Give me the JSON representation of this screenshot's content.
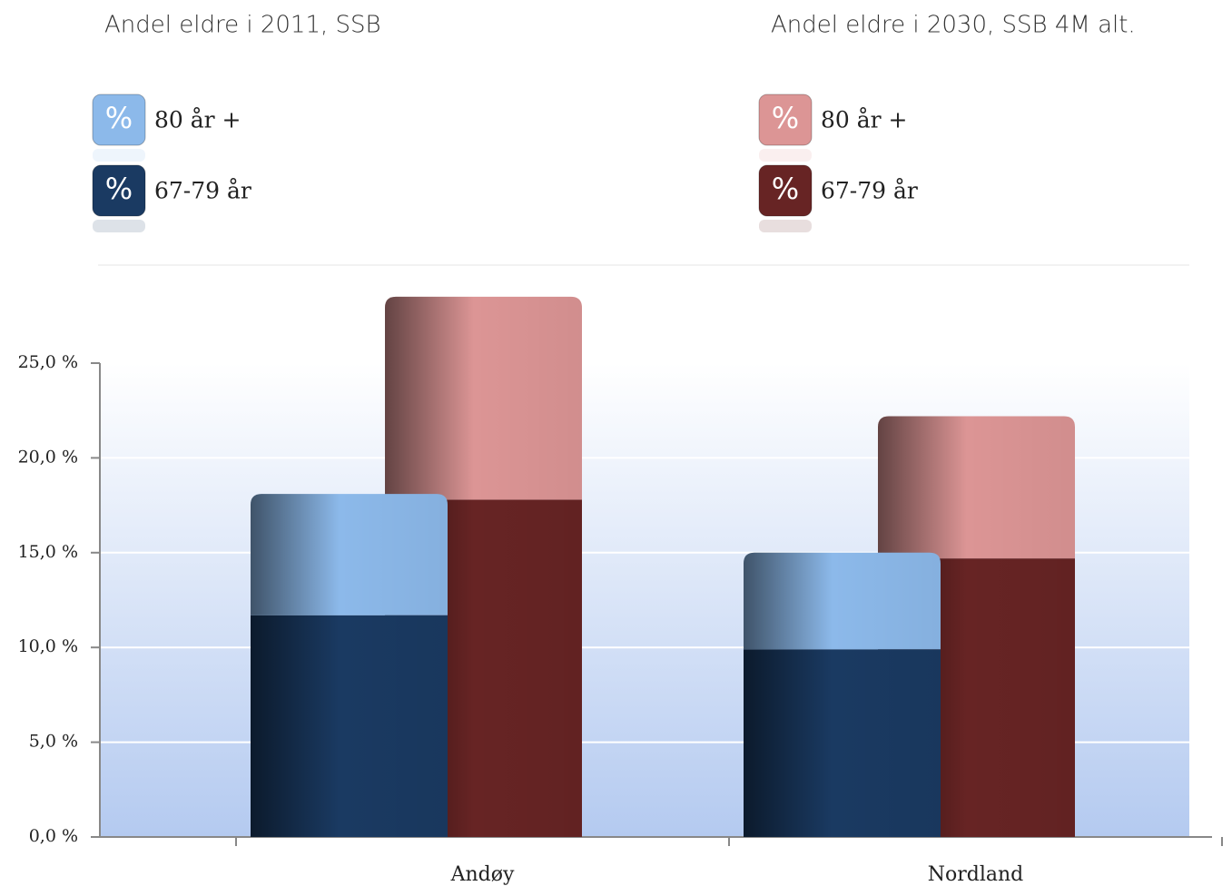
{
  "chart_data": {
    "type": "bar",
    "stacked": true,
    "categories": [
      "Andøy",
      "Nordland"
    ],
    "legend_icon_text": "%",
    "groups": [
      {
        "title": "Andel eldre i 2011, SSB",
        "series": [
          {
            "name": "67-79 år",
            "color": "#1a3a62",
            "values": [
              11.7,
              9.9
            ]
          },
          {
            "name": "80 år +",
            "color": "#8cb9ea",
            "values": [
              6.4,
              5.1
            ]
          }
        ]
      },
      {
        "title": "Andel eldre i 2030, SSB 4M alt.",
        "series": [
          {
            "name": "67-79 år",
            "color": "#672424",
            "values": [
              17.8,
              14.7
            ]
          },
          {
            "name": "80 år +",
            "color": "#dc9595",
            "values": [
              10.7,
              7.5
            ]
          }
        ]
      }
    ],
    "ylim": [
      0,
      30
    ],
    "yticks": [
      {
        "value": 0,
        "label": "0,0 %"
      },
      {
        "value": 5,
        "label": "5,0 %"
      },
      {
        "value": 10,
        "label": "10,0 %"
      },
      {
        "value": 15,
        "label": "15,0 %"
      },
      {
        "value": 20,
        "label": "20,0 %"
      },
      {
        "value": 25,
        "label": "25,0 %"
      }
    ],
    "grid": true
  }
}
